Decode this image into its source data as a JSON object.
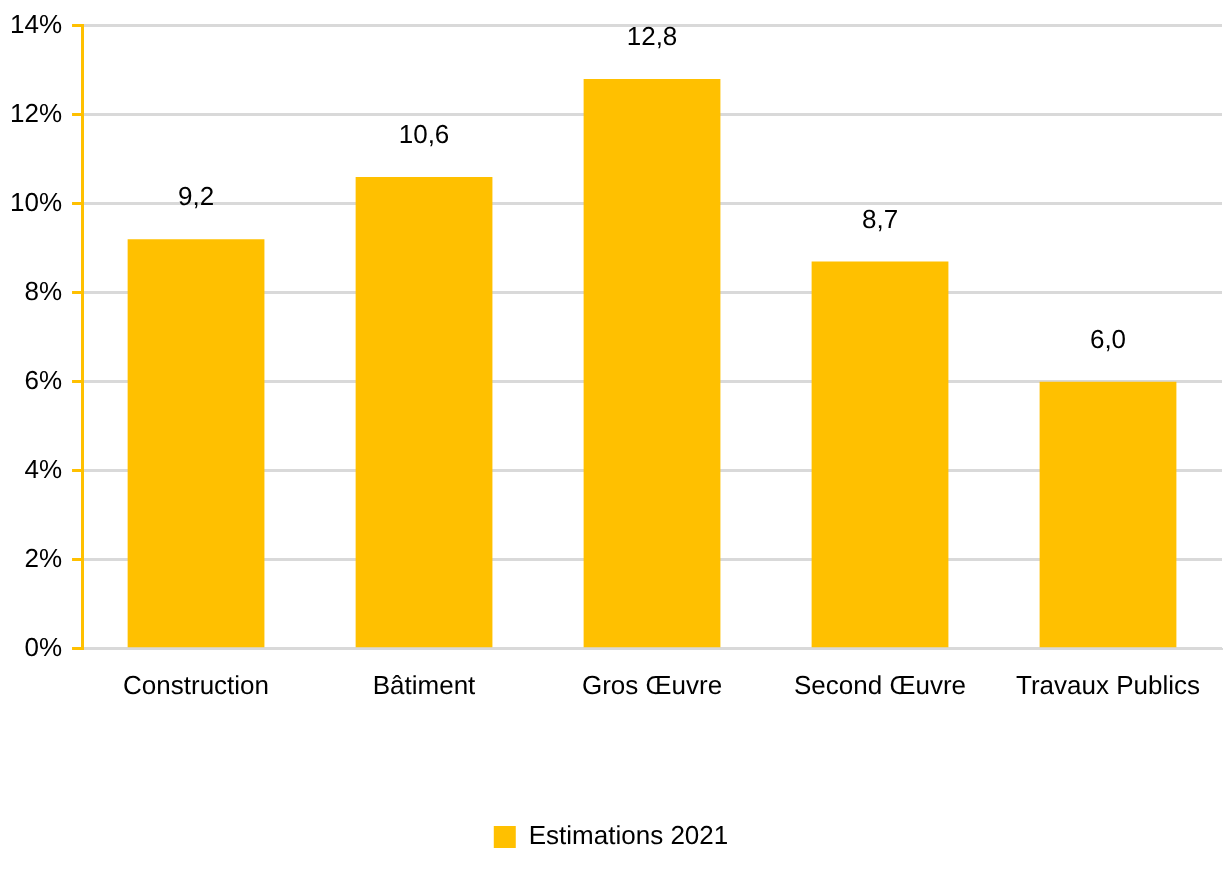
{
  "chart_data": {
    "type": "bar",
    "categories": [
      "Construction",
      "Bâtiment",
      "Gros Œuvre",
      "Second Œuvre",
      "Travaux Publics"
    ],
    "series": [
      {
        "name": "Estimations 2021",
        "color": "#ffc000",
        "values": [
          9.2,
          10.6,
          12.8,
          8.7,
          6.0
        ],
        "value_labels": [
          "9,2",
          "10,6",
          "12,8",
          "8,7",
          "6,0"
        ]
      }
    ],
    "ylim": [
      0,
      14
    ],
    "yticks": [
      {
        "value": 0,
        "label": "0%"
      },
      {
        "value": 2,
        "label": "2%"
      },
      {
        "value": 4,
        "label": "4%"
      },
      {
        "value": 6,
        "label": "6%"
      },
      {
        "value": 8,
        "label": "8%"
      },
      {
        "value": 10,
        "label": "10%"
      },
      {
        "value": 12,
        "label": "12%"
      },
      {
        "value": 14,
        "label": "14%"
      }
    ],
    "grid": "y",
    "legend": "bottom"
  }
}
